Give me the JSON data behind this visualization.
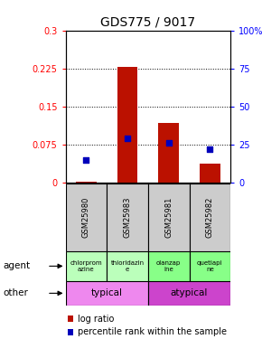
{
  "title": "GDS775 / 9017",
  "samples": [
    "GSM25980",
    "GSM25983",
    "GSM25981",
    "GSM25982"
  ],
  "log_ratios": [
    0.003,
    0.228,
    0.118,
    0.038
  ],
  "percentile_ranks": [
    0.152,
    0.295,
    0.263,
    0.222
  ],
  "bar_color": "#bb1100",
  "dot_color": "#0000bb",
  "ylim_left": [
    0,
    0.3
  ],
  "yticks_left": [
    0,
    0.075,
    0.15,
    0.225,
    0.3
  ],
  "ytick_labels_left": [
    "0",
    "0.075",
    "0.15",
    "0.225",
    "0.3"
  ],
  "ytick_labels_right": [
    "0",
    "25",
    "50",
    "75",
    "100%"
  ],
  "agent_labels": [
    "chlorprom\nazine",
    "thioridazin\ne",
    "olanzap\nine",
    "quetiapi\nne"
  ],
  "agent_color_left": "#bbffbb",
  "agent_color_right": "#88ff88",
  "other_labels": [
    "typical",
    "atypical"
  ],
  "other_color_left": "#ee88ee",
  "other_color_right": "#cc44cc",
  "background_color": "#ffffff",
  "plot_bg": "#ffffff",
  "title_fontsize": 10,
  "left_label_agent": "agent",
  "left_label_other": "other",
  "legend_label1": "log ratio",
  "legend_label2": "percentile rank within the sample"
}
